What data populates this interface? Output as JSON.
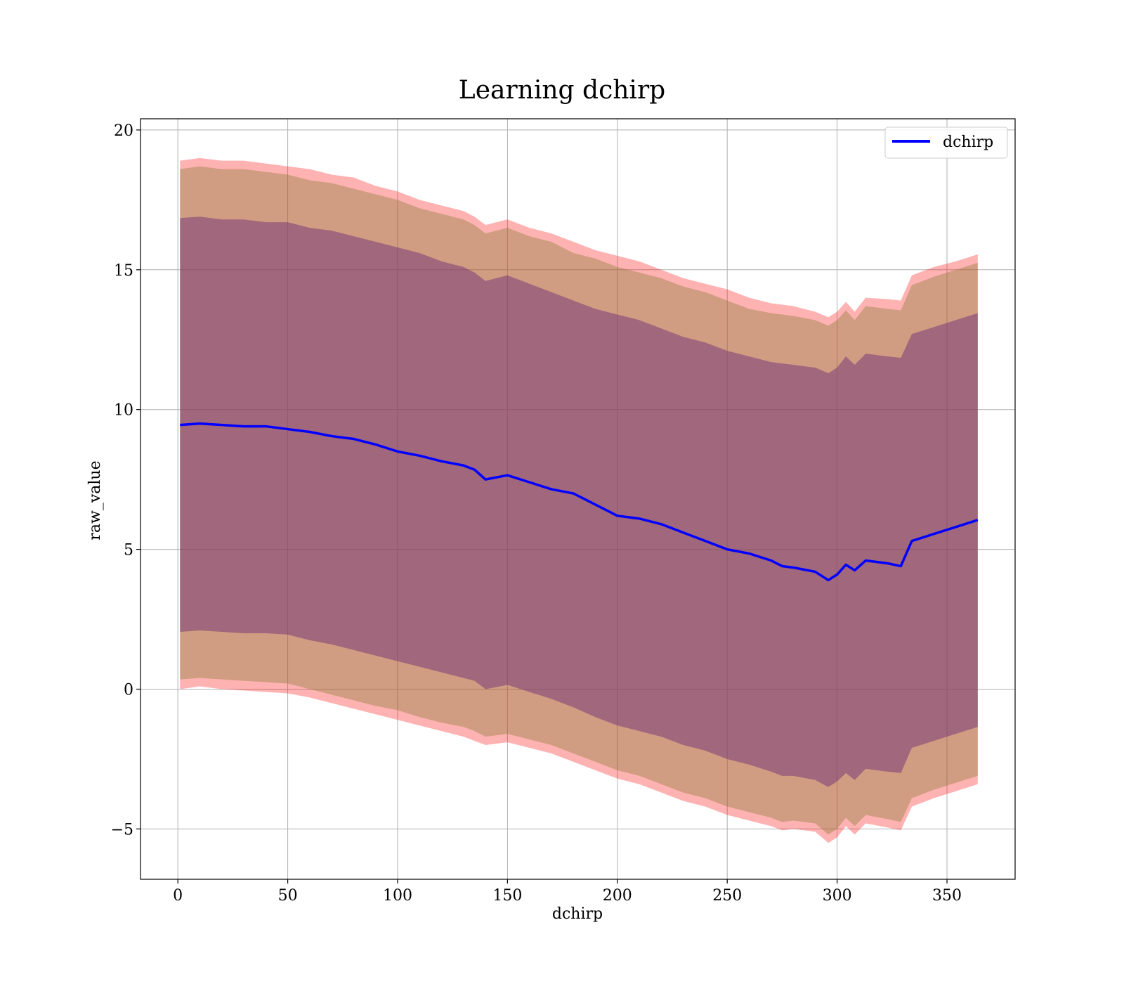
{
  "chart_data": {
    "type": "line",
    "title": "Learning dchirp",
    "xlabel": "dchirp",
    "ylabel": "raw_value",
    "xlim": [
      -17,
      381
    ],
    "ylim": [
      -6.8,
      20.4
    ],
    "xticks": [
      0,
      50,
      100,
      150,
      200,
      250,
      300,
      350
    ],
    "xtick_labels": [
      "0",
      "50",
      "100",
      "150",
      "200",
      "250",
      "300",
      "350"
    ],
    "yticks": [
      -5,
      0,
      5,
      10,
      15,
      20
    ],
    "ytick_labels": [
      "−5",
      "0",
      "5",
      "10",
      "15",
      "20"
    ],
    "grid": true,
    "legend_position": "top-right",
    "colors": {
      "line": "#0000ff",
      "outer_band": "#ff0000",
      "outer_band_opacity": 0.3,
      "middle_band": "#8b7d3a",
      "middle_band_opacity": 0.4,
      "inner_band": "#7a3a78",
      "inner_band_opacity": 0.55
    },
    "series": [
      {
        "name": "dchirp",
        "x": [
          1,
          10,
          20,
          30,
          40,
          50,
          60,
          70,
          80,
          90,
          100,
          110,
          120,
          130,
          135,
          140,
          150,
          160,
          170,
          180,
          190,
          200,
          210,
          220,
          230,
          240,
          250,
          260,
          270,
          275,
          280,
          290,
          296,
          300,
          304,
          308,
          313,
          323,
          329,
          334,
          344,
          354,
          364
        ],
        "y": [
          9.45,
          9.5,
          9.45,
          9.4,
          9.4,
          9.3,
          9.2,
          9.05,
          8.95,
          8.75,
          8.5,
          8.35,
          8.15,
          8.0,
          7.85,
          7.5,
          7.65,
          7.4,
          7.15,
          7.0,
          6.6,
          6.2,
          6.1,
          5.9,
          5.6,
          5.3,
          5.0,
          4.85,
          4.6,
          4.4,
          4.35,
          4.2,
          3.9,
          4.1,
          4.45,
          4.25,
          4.6,
          4.5,
          4.4,
          5.3,
          5.55,
          5.8,
          6.05
        ]
      }
    ],
    "bands": {
      "outer": {
        "upper": [
          18.9,
          19.0,
          18.9,
          18.9,
          18.8,
          18.7,
          18.6,
          18.4,
          18.3,
          18.0,
          17.8,
          17.5,
          17.3,
          17.1,
          16.9,
          16.6,
          16.8,
          16.5,
          16.3,
          16.0,
          15.7,
          15.5,
          15.3,
          15.0,
          14.7,
          14.5,
          14.3,
          14.0,
          13.8,
          13.75,
          13.7,
          13.5,
          13.3,
          13.5,
          13.85,
          13.5,
          14.0,
          13.95,
          13.9,
          14.8,
          15.1,
          15.3,
          15.55
        ],
        "lower": [
          0.0,
          0.1,
          0.0,
          -0.05,
          -0.1,
          -0.15,
          -0.3,
          -0.5,
          -0.7,
          -0.9,
          -1.1,
          -1.3,
          -1.5,
          -1.7,
          -1.85,
          -2.0,
          -1.9,
          -2.1,
          -2.3,
          -2.6,
          -2.9,
          -3.2,
          -3.4,
          -3.7,
          -4.0,
          -4.2,
          -4.5,
          -4.7,
          -4.9,
          -5.05,
          -5.0,
          -5.1,
          -5.5,
          -5.3,
          -4.9,
          -5.2,
          -4.8,
          -4.95,
          -5.05,
          -4.2,
          -3.9,
          -3.65,
          -3.4
        ]
      },
      "middle": {
        "upper": [
          18.6,
          18.7,
          18.6,
          18.6,
          18.5,
          18.4,
          18.2,
          18.1,
          17.9,
          17.7,
          17.5,
          17.2,
          17.0,
          16.8,
          16.6,
          16.3,
          16.5,
          16.2,
          16.0,
          15.6,
          15.4,
          15.1,
          14.9,
          14.7,
          14.4,
          14.2,
          13.9,
          13.6,
          13.45,
          13.4,
          13.35,
          13.2,
          13.0,
          13.2,
          13.55,
          13.2,
          13.7,
          13.6,
          13.55,
          14.45,
          14.75,
          15.0,
          15.25
        ],
        "lower": [
          0.35,
          0.4,
          0.35,
          0.3,
          0.25,
          0.2,
          0.0,
          -0.2,
          -0.4,
          -0.6,
          -0.75,
          -1.0,
          -1.2,
          -1.35,
          -1.5,
          -1.7,
          -1.6,
          -1.8,
          -2.0,
          -2.3,
          -2.6,
          -2.9,
          -3.1,
          -3.4,
          -3.7,
          -3.9,
          -4.2,
          -4.4,
          -4.6,
          -4.75,
          -4.7,
          -4.8,
          -5.2,
          -5.0,
          -4.6,
          -4.9,
          -4.5,
          -4.65,
          -4.75,
          -3.9,
          -3.6,
          -3.35,
          -3.1
        ]
      },
      "inner": {
        "upper": [
          16.85,
          16.9,
          16.8,
          16.8,
          16.7,
          16.7,
          16.5,
          16.4,
          16.2,
          16.0,
          15.8,
          15.6,
          15.3,
          15.1,
          14.9,
          14.6,
          14.8,
          14.5,
          14.2,
          13.9,
          13.6,
          13.4,
          13.2,
          12.9,
          12.6,
          12.4,
          12.1,
          11.9,
          11.7,
          11.65,
          11.6,
          11.5,
          11.3,
          11.5,
          11.9,
          11.6,
          12.0,
          11.9,
          11.85,
          12.7,
          12.95,
          13.2,
          13.45
        ],
        "lower": [
          2.05,
          2.1,
          2.05,
          2.0,
          2.0,
          1.95,
          1.75,
          1.6,
          1.4,
          1.2,
          1.0,
          0.8,
          0.6,
          0.4,
          0.3,
          0.0,
          0.15,
          -0.1,
          -0.35,
          -0.65,
          -1.0,
          -1.3,
          -1.5,
          -1.7,
          -2.0,
          -2.2,
          -2.5,
          -2.7,
          -2.95,
          -3.1,
          -3.1,
          -3.25,
          -3.5,
          -3.3,
          -3.0,
          -3.25,
          -2.85,
          -2.95,
          -3.0,
          -2.1,
          -1.85,
          -1.6,
          -1.35
        ]
      }
    }
  }
}
